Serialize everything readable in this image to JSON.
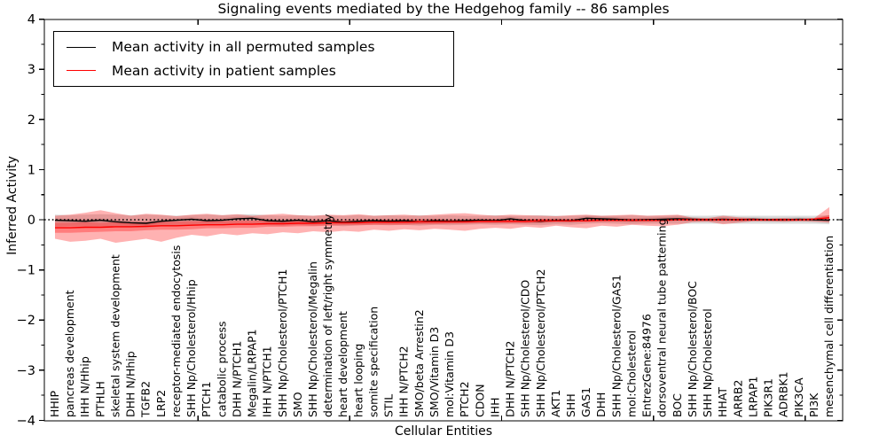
{
  "chart_data": {
    "type": "line",
    "title": "Signaling events mediated by the Hedgehog family -- 86 samples",
    "xlabel": "Cellular Entities",
    "ylabel": "Inferred Activity",
    "ylim": [
      -4,
      4
    ],
    "yticks": [
      -4,
      -3,
      -2,
      -1,
      0,
      1,
      2,
      3,
      4
    ],
    "grid": false,
    "legend_position": "upper left",
    "legend": [
      {
        "label": "Mean activity in all permuted samples",
        "color": "#000000"
      },
      {
        "label": "Mean activity in patient samples",
        "color": "#ff0000"
      }
    ],
    "zero_reference_line": {
      "y": 0,
      "style": "dotted",
      "color": "#000000"
    },
    "categories": [
      "HHIP",
      "pancreas development",
      "IHH N/Hhip",
      "PTHLH",
      "skeletal system development",
      "DHH N/Hhip",
      "TGFB2",
      "LRP2",
      "receptor-mediated endocytosis",
      "SHH Np/Cholesterol/Hhip",
      "PTCH1",
      "catabolic process",
      "DHH N/PTCH1",
      "Megalin/LRPAP1",
      "IHH N/PTCH1",
      "SHH Np/Cholesterol/PTCH1",
      "SMO",
      "SHH Np/Cholesterol/Megalin",
      "determination of left/right symmetry",
      "heart development",
      "heart looping",
      "somite specification",
      "STIL",
      "IHH N/PTCH2",
      "SMO/beta Arrestin2",
      "SMO/Vitamin D3",
      "mol:Vitamin D3",
      "PTCH2",
      "CDON",
      "IHH",
      "DHH N/PTCH2",
      "SHH Np/Cholesterol/CDO",
      "SHH Np/Cholesterol/PTCH2",
      "AKT1",
      "SHH",
      "GAS1",
      "DHH",
      "SHH Np/Cholesterol/GAS1",
      "mol:Cholesterol",
      "EntrezGene:84976",
      "dorsoventral neural tube patterning",
      "BOC",
      "SHH Np/Cholesterol/BOC",
      "SHH Np/Cholesterol",
      "HHAT",
      "ARRB2",
      "LRPAP1",
      "PIK3R1",
      "ADRBK1",
      "PIK3CA",
      "PI3K",
      "mesenchymal cell differentiation"
    ],
    "series": [
      {
        "name": "Mean activity in all permuted samples",
        "color": "#000000",
        "values": [
          -0.01,
          -0.02,
          -0.03,
          -0.01,
          -0.04,
          -0.06,
          -0.07,
          -0.03,
          -0.01,
          0.01,
          -0.02,
          -0.01,
          0.02,
          0.03,
          -0.02,
          -0.03,
          -0.01,
          -0.04,
          -0.02,
          -0.05,
          -0.03,
          -0.02,
          -0.03,
          -0.02,
          -0.04,
          -0.02,
          -0.03,
          -0.02,
          -0.01,
          -0.02,
          0.02,
          -0.02,
          -0.03,
          -0.01,
          -0.02,
          0.03,
          0.02,
          0.01,
          -0.01,
          0.0,
          0.01,
          0.02,
          0.01,
          0.0,
          0.01,
          0.0,
          0.01,
          0.0,
          0.0,
          0.01,
          0.0,
          -0.01
        ]
      },
      {
        "name": "Mean activity in patient samples",
        "color": "#ff0000",
        "values": [
          -0.16,
          -0.16,
          -0.15,
          -0.15,
          -0.14,
          -0.14,
          -0.13,
          -0.12,
          -0.12,
          -0.11,
          -0.1,
          -0.1,
          -0.09,
          -0.09,
          -0.08,
          -0.08,
          -0.07,
          -0.07,
          -0.06,
          -0.06,
          -0.06,
          -0.05,
          -0.05,
          -0.05,
          -0.04,
          -0.04,
          -0.04,
          -0.04,
          -0.03,
          -0.03,
          -0.03,
          -0.03,
          -0.02,
          -0.02,
          -0.02,
          -0.02,
          -0.01,
          -0.01,
          -0.01,
          -0.01,
          -0.01,
          0.0,
          0.0,
          0.0,
          0.0,
          0.0,
          0.0,
          0.0,
          0.0,
          0.0,
          0.01,
          0.04
        ]
      }
    ],
    "bands": [
      {
        "name": "permuted samples range",
        "color": "#999999",
        "opacity": 0.35,
        "upper": [
          0.1,
          0.09,
          0.1,
          0.11,
          0.1,
          0.09,
          0.1,
          0.09,
          0.08,
          0.09,
          0.1,
          0.09,
          0.1,
          0.11,
          0.09,
          0.08,
          0.09,
          0.08,
          0.09,
          0.08,
          0.09,
          0.08,
          0.09,
          0.08,
          0.09,
          0.08,
          0.09,
          0.08,
          0.08,
          0.09,
          0.08,
          0.08,
          0.09,
          0.08,
          0.08,
          0.09,
          0.08,
          0.08,
          0.09,
          0.08,
          0.08,
          0.09,
          0.08,
          0.08,
          0.09,
          0.08,
          0.08,
          0.08,
          0.08,
          0.08,
          0.08,
          0.09
        ],
        "lower": [
          -0.14,
          -0.13,
          -0.14,
          -0.13,
          -0.14,
          -0.15,
          -0.16,
          -0.13,
          -0.11,
          -0.1,
          -0.11,
          -0.1,
          -0.09,
          -0.09,
          -0.11,
          -0.12,
          -0.1,
          -0.12,
          -0.11,
          -0.13,
          -0.11,
          -0.1,
          -0.11,
          -0.1,
          -0.12,
          -0.1,
          -0.11,
          -0.1,
          -0.09,
          -0.1,
          -0.09,
          -0.1,
          -0.11,
          -0.09,
          -0.1,
          -0.08,
          -0.07,
          -0.08,
          -0.09,
          -0.08,
          -0.08,
          -0.08,
          -0.08,
          -0.08,
          -0.08,
          -0.08,
          -0.08,
          -0.08,
          -0.08,
          -0.08,
          -0.08,
          -0.09
        ]
      },
      {
        "name": "permuted samples inner band",
        "color": "#999999",
        "opacity": 0.35,
        "around": 0,
        "halfwidth": 0.04
      },
      {
        "name": "patient samples range",
        "color": "#ff0000",
        "opacity": 0.3,
        "upper": [
          0.08,
          0.1,
          0.14,
          0.19,
          0.13,
          0.08,
          0.12,
          0.1,
          0.07,
          0.1,
          0.12,
          0.09,
          0.11,
          0.08,
          0.1,
          0.12,
          0.09,
          0.08,
          0.1,
          0.09,
          0.11,
          0.08,
          0.09,
          0.1,
          0.08,
          0.1,
          0.12,
          0.13,
          0.1,
          0.08,
          0.1,
          0.09,
          0.08,
          0.07,
          0.09,
          0.1,
          0.08,
          0.09,
          0.1,
          0.08,
          0.09,
          0.1,
          0.04,
          0.03,
          0.08,
          0.05,
          0.03,
          0.02,
          0.03,
          0.02,
          0.03,
          0.25
        ],
        "lower": [
          -0.38,
          -0.44,
          -0.42,
          -0.38,
          -0.46,
          -0.42,
          -0.38,
          -0.44,
          -0.36,
          -0.3,
          -0.33,
          -0.28,
          -0.31,
          -0.27,
          -0.29,
          -0.25,
          -0.27,
          -0.23,
          -0.25,
          -0.22,
          -0.24,
          -0.2,
          -0.22,
          -0.19,
          -0.21,
          -0.18,
          -0.2,
          -0.22,
          -0.18,
          -0.16,
          -0.18,
          -0.14,
          -0.16,
          -0.12,
          -0.15,
          -0.17,
          -0.12,
          -0.14,
          -0.1,
          -0.12,
          -0.13,
          -0.1,
          -0.05,
          -0.04,
          -0.09,
          -0.06,
          -0.03,
          -0.03,
          -0.04,
          -0.03,
          -0.04,
          -0.06
        ]
      },
      {
        "name": "patient samples inner band",
        "color": "#ff0000",
        "opacity": 0.3,
        "around": 1,
        "halfwidths": [
          0.1,
          0.1,
          0.1,
          0.09,
          0.09,
          0.09,
          0.08,
          0.08,
          0.08,
          0.08,
          0.07,
          0.07,
          0.07,
          0.07,
          0.06,
          0.06,
          0.06,
          0.06,
          0.06,
          0.05,
          0.05,
          0.05,
          0.05,
          0.05,
          0.05,
          0.05,
          0.04,
          0.04,
          0.04,
          0.04,
          0.04,
          0.04,
          0.04,
          0.03,
          0.03,
          0.03,
          0.03,
          0.03,
          0.03,
          0.03,
          0.03,
          0.02,
          0.02,
          0.02,
          0.02,
          0.02,
          0.02,
          0.02,
          0.02,
          0.02,
          0.02,
          0.05
        ]
      }
    ]
  }
}
